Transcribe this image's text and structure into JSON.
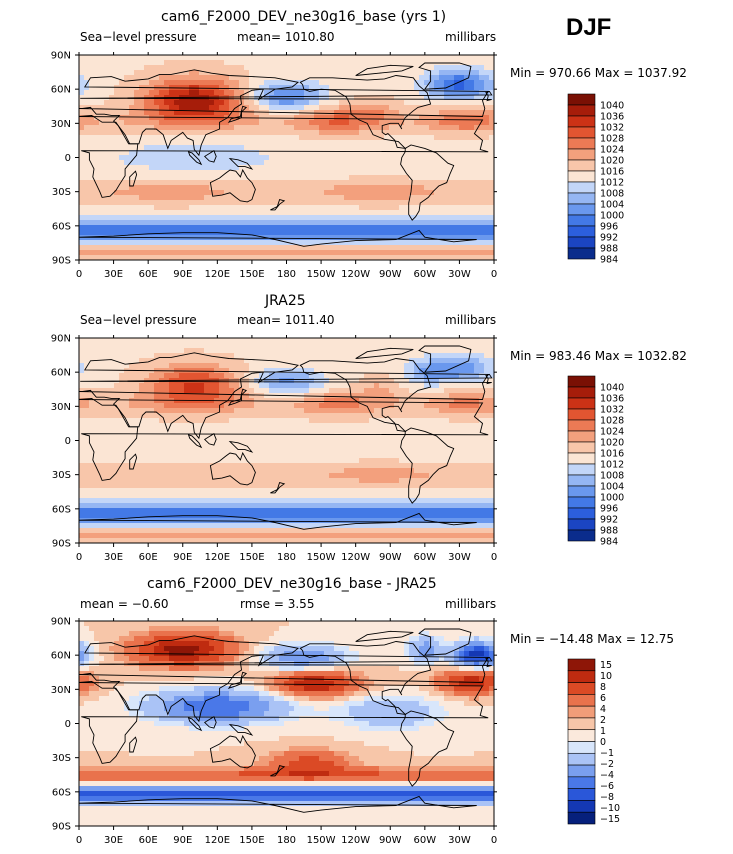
{
  "season": "DJF",
  "units": "millibars",
  "colors": {
    "pressure": [
      "#0a2c8c",
      "#1b45c2",
      "#2c5fdd",
      "#4379e6",
      "#6a98ee",
      "#95b6f3",
      "#c3d6f8",
      "#fbe5d4",
      "#f8c6aa",
      "#f3a07d",
      "#ec7a55",
      "#e25531",
      "#cc3216",
      "#a61d0a",
      "#7a1004"
    ],
    "difference": [
      "#06207c",
      "#1438b4",
      "#2a57d9",
      "#4a78e8",
      "#7a9fef",
      "#aac3f6",
      "#d8e6fb",
      "#fbe9dc",
      "#f7c6a9",
      "#f19d79",
      "#e9724c",
      "#db4a25",
      "#bf2b10",
      "#8e1607"
    ],
    "land_outline": "#000000"
  },
  "chart_data": [
    {
      "type": "heatmap",
      "title": "cam6_F2000_DEV_ne30g16_base (yrs 1)",
      "left_label": "Sea−level pressure",
      "center_label": "mean=  1010.80",
      "right_label": "millibars",
      "minmax_label": "Min = 970.66 Max = 1037.92",
      "mean": 1010.8,
      "min": 970.66,
      "max": 1037.92,
      "colorbar_levels": [
        "1040",
        "1036",
        "1032",
        "1028",
        "1024",
        "1020",
        "1016",
        "1012",
        "1008",
        "1004",
        "1000",
        "996",
        "992",
        "988",
        "984"
      ],
      "x_ticks": [
        "0",
        "30E",
        "60E",
        "90E",
        "120E",
        "150E",
        "180",
        "150W",
        "120W",
        "90W",
        "60W",
        "30W",
        "0"
      ],
      "y_ticks": [
        "90N",
        "60N",
        "30N",
        "0",
        "30S",
        "60S",
        "90S"
      ],
      "field": "model"
    },
    {
      "type": "heatmap",
      "title": "JRA25",
      "left_label": "Sea−level pressure",
      "center_label": "mean=  1011.40",
      "right_label": "millibars",
      "minmax_label": "Min = 983.46 Max = 1032.82",
      "mean": 1011.4,
      "min": 983.46,
      "max": 1032.82,
      "colorbar_levels": [
        "1040",
        "1036",
        "1032",
        "1028",
        "1024",
        "1020",
        "1016",
        "1012",
        "1008",
        "1004",
        "1000",
        "996",
        "992",
        "988",
        "984"
      ],
      "x_ticks": [
        "0",
        "30E",
        "60E",
        "90E",
        "120E",
        "150E",
        "180",
        "150W",
        "120W",
        "90W",
        "60W",
        "30W",
        "0"
      ],
      "y_ticks": [
        "90N",
        "60N",
        "30N",
        "0",
        "30S",
        "60S",
        "90S"
      ],
      "field": "obs"
    },
    {
      "type": "heatmap",
      "title": "cam6_F2000_DEV_ne30g16_base - JRA25",
      "left_label": "mean =   −0.60",
      "center_label": "rmse =    3.55",
      "right_label": "millibars",
      "minmax_label": "Min = −14.48 Max =   12.75",
      "mean": -0.6,
      "rmse": 3.55,
      "min": -14.48,
      "max": 12.75,
      "colorbar_levels": [
        "15",
        "10",
        "8",
        "6",
        "4",
        "2",
        "1",
        "0",
        "−1",
        "−2",
        "−4",
        "−6",
        "−8",
        "−10",
        "−15"
      ],
      "x_ticks": [
        "0",
        "30E",
        "60E",
        "90E",
        "120E",
        "150E",
        "180",
        "150W",
        "120W",
        "90W",
        "60W",
        "30W",
        "0"
      ],
      "y_ticks": [
        "90N",
        "60N",
        "30N",
        "0",
        "30S",
        "60S",
        "90S"
      ],
      "field": "diff"
    }
  ]
}
